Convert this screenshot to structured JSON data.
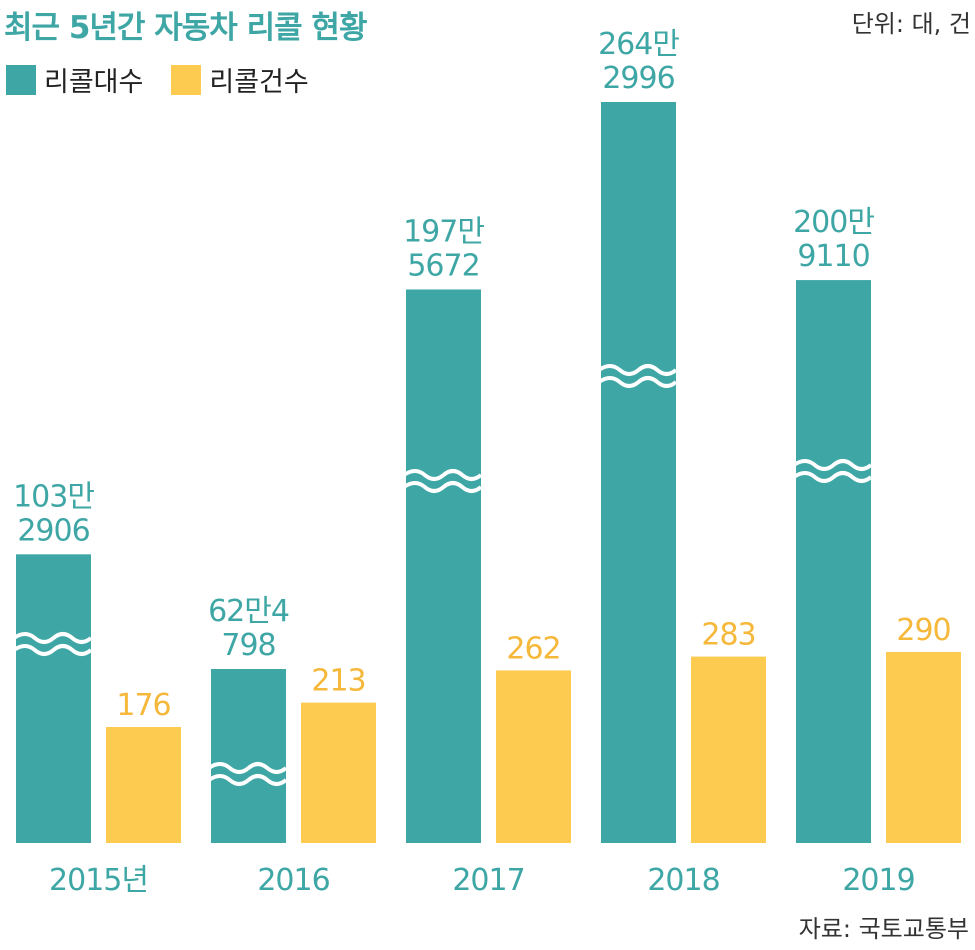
{
  "title": "최근 5년간 자동차 리콜 현황",
  "unit_label": "단위: 대, 건",
  "source_label": "자료: 국토교통부",
  "colors": {
    "recall_units": "#3ea7a5",
    "recall_cases": "#fdcb4f",
    "title": "#3ea7a5"
  },
  "legend": [
    {
      "label": "리콜대수",
      "color": "#3ea7a5"
    },
    {
      "label": "리콜건수",
      "color": "#fdcb4f"
    }
  ],
  "chart_data": {
    "type": "bar",
    "categories": [
      "2015년",
      "2016",
      "2017",
      "2018",
      "2019"
    ],
    "axis_breaks": true,
    "grid": false,
    "legend_position": "top-left",
    "series": [
      {
        "name": "리콜대수",
        "values": [
          1032906,
          624798,
          1975672,
          2642996,
          2009110
        ],
        "labels": [
          [
            "103만",
            "2906"
          ],
          [
            "62만4",
            "798"
          ],
          [
            "197만",
            "5672"
          ],
          [
            "264만",
            "2996"
          ],
          [
            "200만",
            "9110"
          ]
        ]
      },
      {
        "name": "리콜건수",
        "values": [
          176,
          213,
          262,
          283,
          290
        ],
        "labels": [
          [
            "176"
          ],
          [
            "213"
          ],
          [
            "262"
          ],
          [
            "283"
          ],
          [
            "290"
          ]
        ]
      }
    ]
  }
}
